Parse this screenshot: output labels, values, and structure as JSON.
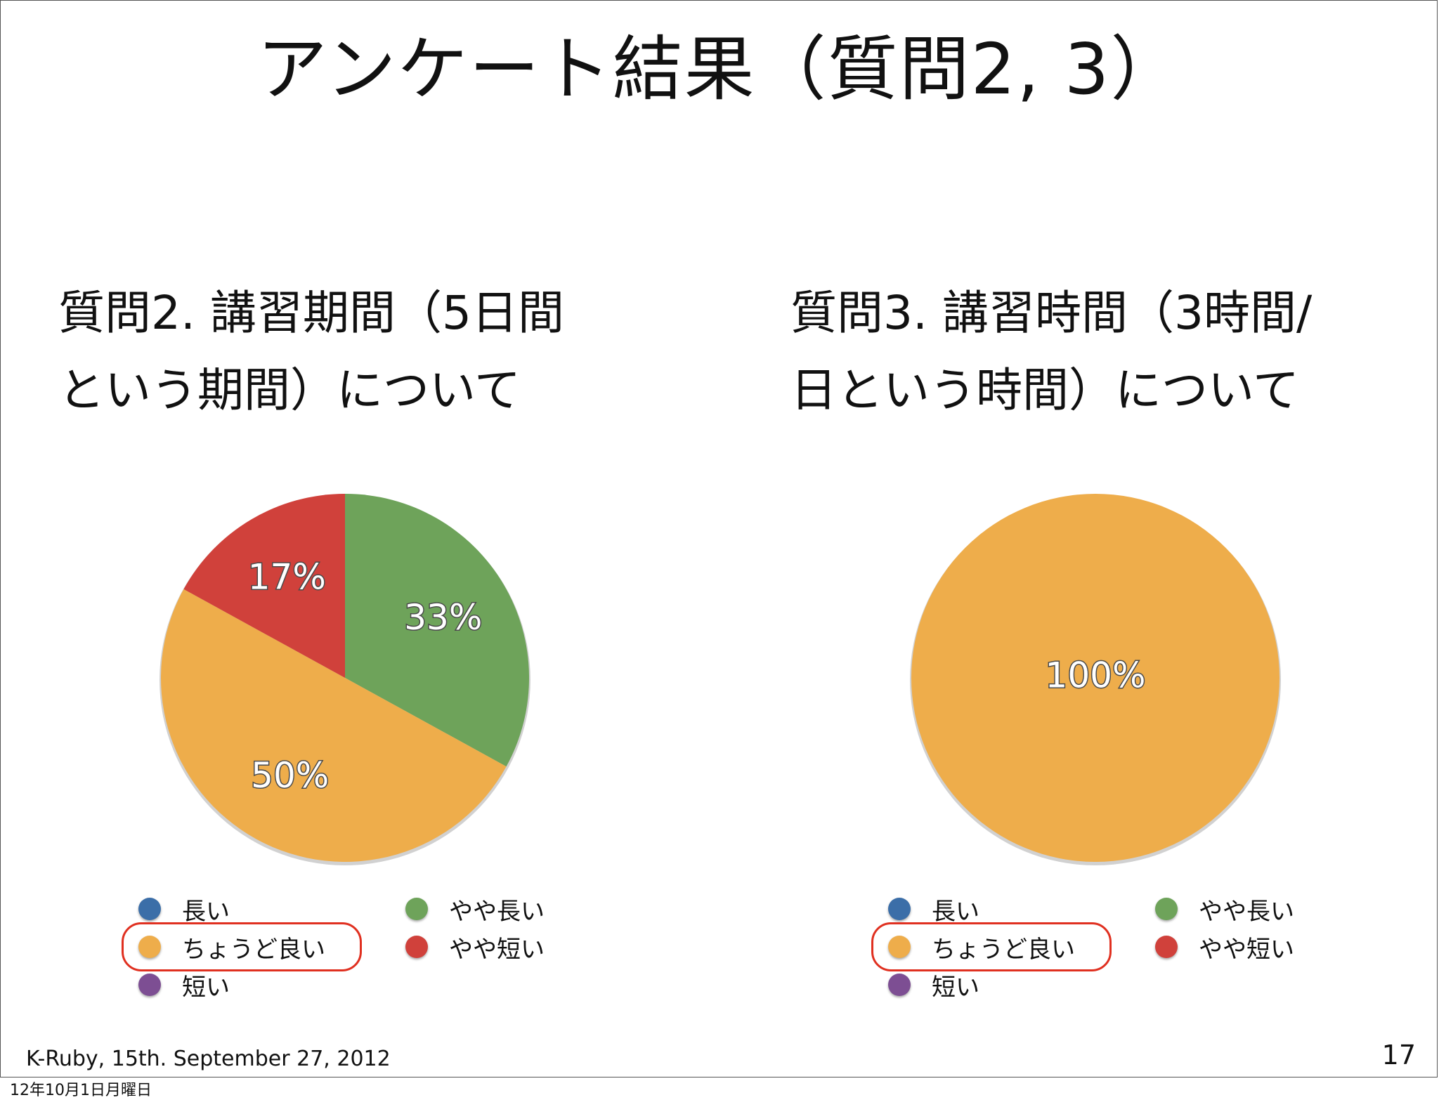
{
  "slide": {
    "title": "アンケート結果（質問2,  3）",
    "footer": "K-Ruby, 15th. September 27, 2012",
    "page_number": "17",
    "date_stamp": "12年10月1日月曜日"
  },
  "legend_categories": [
    "長い",
    "やや長い",
    "ちょうど良い",
    "やや短い",
    "短い"
  ],
  "colors": {
    "長い": "#3b6ea8",
    "やや長い": "#6ea35a",
    "ちょうど良い": "#eead4b",
    "やや短い": "#d0413b",
    "短い": "#7d4e93",
    "highlight": "#e03020"
  },
  "highlighted_category": "ちょうど良い",
  "chart_data": [
    {
      "type": "pie",
      "title_line1": "質問2. 講習期間（5日間",
      "title_line2": "という期間）について",
      "slices": [
        {
          "label": "やや長い",
          "value": 33,
          "text": "33%"
        },
        {
          "label": "ちょうど良い",
          "value": 50,
          "text": "50%"
        },
        {
          "label": "やや短い",
          "value": 17,
          "text": "17%"
        }
      ],
      "legend": [
        "長い",
        "やや長い",
        "ちょうど良い",
        "やや短い",
        "短い"
      ]
    },
    {
      "type": "pie",
      "title_line1": "質問3. 講習時間（3時間/",
      "title_line2": "日という時間）について",
      "slices": [
        {
          "label": "ちょうど良い",
          "value": 100,
          "text": "100%"
        }
      ],
      "legend": [
        "長い",
        "やや長い",
        "ちょうど良い",
        "やや短い",
        "短い"
      ]
    }
  ]
}
